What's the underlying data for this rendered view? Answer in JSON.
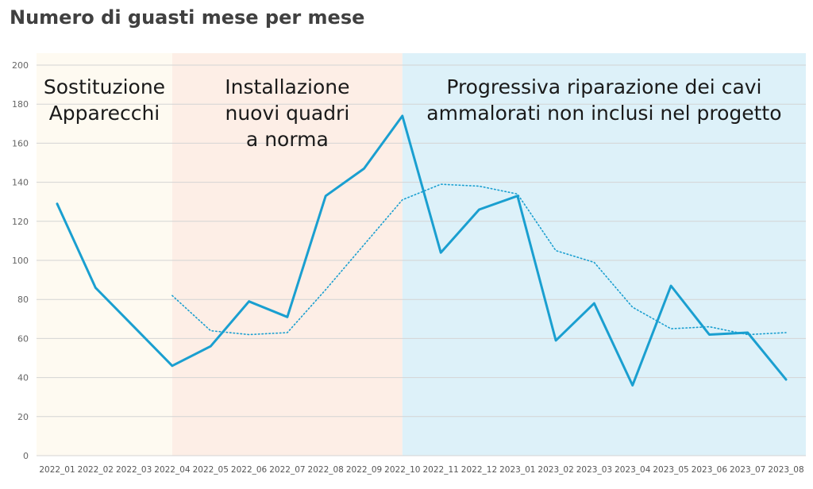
{
  "title": "Numero di guasti mese per mese",
  "chart_data": {
    "type": "line",
    "title": "Numero di guasti mese per mese",
    "xlabel": "",
    "ylabel": "",
    "ylim": [
      0,
      200
    ],
    "yticks": [
      0,
      20,
      40,
      60,
      80,
      100,
      120,
      140,
      160,
      180,
      200
    ],
    "grid": true,
    "categories": [
      "2022_01",
      "2022_02",
      "2022_03",
      "2022_04",
      "2022_05",
      "2022_06",
      "2022_07",
      "2022_08",
      "2022_09",
      "2022_10",
      "2022_11",
      "2022_12",
      "2023_01",
      "2023_02",
      "2023_03",
      "2023_04",
      "2023_05",
      "2023_06",
      "2023_07",
      "2023_08"
    ],
    "series": [
      {
        "style": "solid",
        "color": "#1a9fd0",
        "values": [
          129,
          86,
          66,
          46,
          56,
          79,
          71,
          133,
          147,
          174,
          104,
          126,
          133,
          59,
          78,
          36,
          87,
          62,
          63,
          39
        ]
      },
      {
        "style": "dotted",
        "color": "#1a9fd0",
        "values": [
          null,
          null,
          null,
          82,
          64,
          62,
          63,
          85,
          108,
          131,
          139,
          138,
          134,
          105,
          99,
          76,
          65,
          66,
          62,
          63
        ]
      }
    ],
    "regions": [
      {
        "start": "2022_01",
        "end": "2022_04",
        "color": "#fefaf1",
        "label": [
          "Sostituzione",
          "Apparecchi"
        ]
      },
      {
        "start": "2022_04",
        "end": "2022_10",
        "color": "#fdeee6",
        "label": [
          "Installazione",
          "nuovi quadri",
          "a norma"
        ]
      },
      {
        "start": "2022_10",
        "end": "2023_08",
        "color": "#ddf1f9",
        "label": [
          "Progressiva riparazione dei cavi",
          "ammalorati non inclusi nel progetto"
        ]
      }
    ]
  }
}
